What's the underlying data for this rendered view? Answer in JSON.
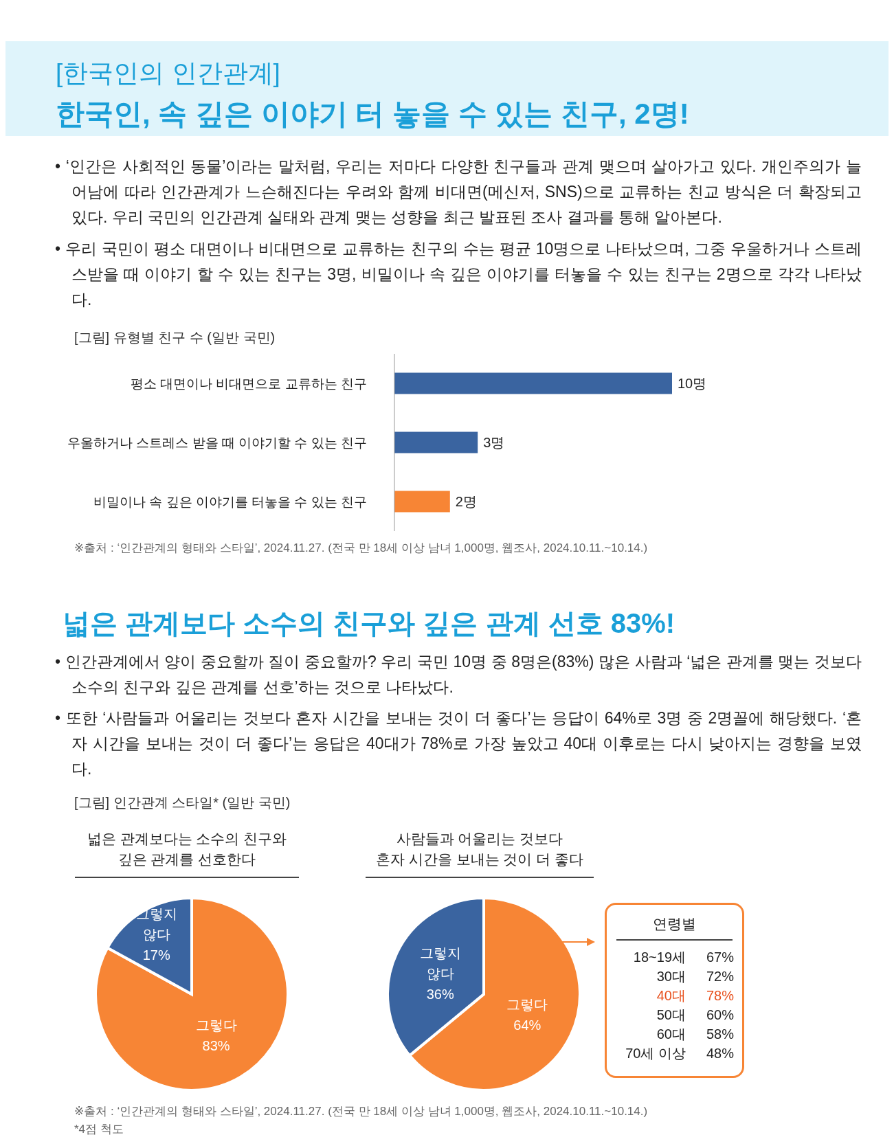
{
  "chart_data": [
    {
      "type": "bar",
      "orientation": "horizontal",
      "title": "[그림] 유형별 친구 수 (일반 국민)",
      "categories": [
        "평소 대면이나 비대면으로 교류하는 친구",
        "우울하거나 스트레스 받을 때 이야기할 수 있는 친구",
        "비밀이나 속 깊은 이야기를 터놓을 수 있는 친구"
      ],
      "values": [
        10,
        3,
        2
      ],
      "colors": [
        "#3a64a0",
        "#3a64a0",
        "#f78535"
      ],
      "value_labels": [
        "10명",
        "3명",
        "2명"
      ],
      "annotations": [
        "[한국인의 인간관계]",
        "한국인, 속 깊은 이야기 터 놓을 수 있는 친구, 2명!",
        "• ‘인간은 사회적인 동물’이라는 말처럼, 우리는 저마다 다양한 친구들과 관계 맺으며 살아가고 있다. 개인주의가 늘어남에 따라 인간관계가 느슨해진다는 우려와 함께 비대면(메신저, SNS)으로 교류하는 친교 방식은 더 확장되고 있다. 우리 국민의 인간관계 실태와 관계 맺는 성향을 최근 발표된 조사 결과를 통해 알아본다.",
        "• 우리 국민이 평소 대면이나 비대면으로 교류하는 친구의 수는 평균 10명으로 나타났으며, 그중 우울하거나 스트레스받을 때 이야기 할 수 있는 친구는 3명, 비밀이나 속 깊은 이야기를 터놓을 수 있는 친구는 2명으로 각각 나타났다.",
        "※출처 : ‘인간관계의 형태와 스타일’, 2024.11.27. (전국 만 18세 이상 남녀 1,000명, 웹조사, 2024.10.11.~10.14.)"
      ]
    },
    {
      "type": "pie",
      "title": "넓은 관계보다는 소수의 친구와\n깊은 관계를 선호한다",
      "categories": [
        "그렇다",
        "그렇지 않다"
      ],
      "values": [
        83,
        17
      ],
      "colors": [
        "#f78535",
        "#3a64a0"
      ],
      "value_labels": [
        "83%",
        "17%"
      ],
      "annotations": [
        "넓은 관계보다 소수의 친구와 깊은 관계 선호 83%!",
        "• 인간관계에서 양이 중요할까 질이 중요할까? 우리 국민 10명 중 8명은(83%) 많은 사람과 ‘넓은 관계를 맺는 것보다 소수의 친구와 깊은 관계를 선호’하는 것으로 나타났다.",
        "• 또한 ‘사람들과 어울리는 것보다 혼자 시간을 보내는 것이 더 좋다’는 응답이 64%로 3명 중 2명꼴에 해당했다. ‘혼자 시간을 보내는 것이 더 좋다’는 응답은 40대가 78%로 가장 높았고 40대 이후로는 다시 낮아지는 경향을 보였다.",
        "[그림] 인간관계 스타일* (일반 국민)"
      ]
    },
    {
      "type": "pie",
      "title": "사람들과 어울리는 것보다\n혼자 시간을 보내는 것이 더 좋다",
      "categories": [
        "그렇다",
        "그렇지 않다"
      ],
      "values": [
        64,
        36
      ],
      "colors": [
        "#f78535",
        "#3a64a0"
      ],
      "value_labels": [
        "64%",
        "36%"
      ],
      "annotations": [
        "연령별",
        "18~19세",
        "67%",
        "30대",
        "72%",
        "40대",
        "78%",
        "50대",
        "60%",
        "60대",
        "58%",
        "70세 이상",
        "48%",
        "※출처 : ‘인간관계의 형태와 스타일’, 2024.11.27. (전국 만 18세 이상 남녀 1,000명, 웹조사, 2024.10.11.~10.14.)",
        "*4점 척도"
      ]
    }
  ]
}
